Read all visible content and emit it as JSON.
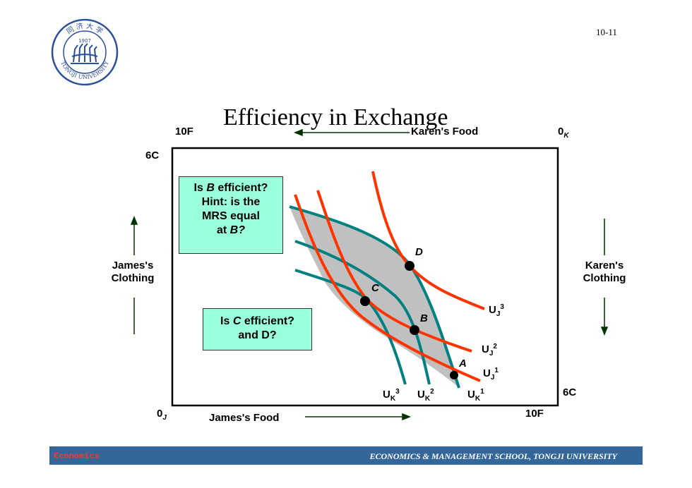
{
  "slide": {
    "page_number": "10-11",
    "title": "Efficiency in Exchange",
    "logo": {
      "text_top": "同 济 大 学",
      "year": "1907",
      "text_bottom": "TONGJI UNIVERSITY"
    }
  },
  "box": {
    "top_left": "10F",
    "top_right_main": "0",
    "top_right_sub": "K",
    "karen_food": "Karen's Food",
    "six_c_left": "6C",
    "six_c_right": "6C",
    "bottom_left_main": "0",
    "bottom_left_sub": "J",
    "james_food": "James's Food",
    "bottom_right": "10F",
    "james_clothing_line1": "James's",
    "james_clothing_line2": "Clothing",
    "karen_clothing_line1": "Karen's",
    "karen_clothing_line2": "Clothing"
  },
  "callouts": {
    "b": {
      "line1_pre": "Is ",
      "line1_em": "B",
      "line1_post": " efficient?",
      "line2": "Hint: is the",
      "line3": "MRS equal",
      "line4_pre": "at ",
      "line4_em": "B?"
    },
    "c": {
      "line1_pre": "Is ",
      "line1_em": "C",
      "line1_post": " efficient?",
      "line2": "and D?"
    }
  },
  "points": {
    "a": "A",
    "b": "B",
    "c": "C",
    "d": "D"
  },
  "curve_labels": {
    "uj3": {
      "main": "U",
      "sub": "J",
      "sup": "3"
    },
    "uj2": {
      "main": "U",
      "sub": "J",
      "sup": "2"
    },
    "uj1": {
      "main": "U",
      "sub": "J",
      "sup": "1"
    },
    "uk3": {
      "main": "U",
      "sub": "K",
      "sup": "3"
    },
    "uk2": {
      "main": "U",
      "sub": "K",
      "sup": "2"
    },
    "uk1": {
      "main": "U",
      "sub": "K",
      "sup": "1"
    }
  },
  "footer": {
    "left": "Economics",
    "right": "ECONOMICS & MANAGEMENT SCHOOL, TONGJI UNIVERSITY"
  },
  "colors": {
    "james_curve": "#ff3300",
    "karen_curve": "#008080",
    "lens_fill": "#c0c0c0",
    "callout_fill": "#99ffdd",
    "footer_bar": "#336699",
    "footer_left_text": "#ff3333",
    "arrow": "#003300"
  }
}
